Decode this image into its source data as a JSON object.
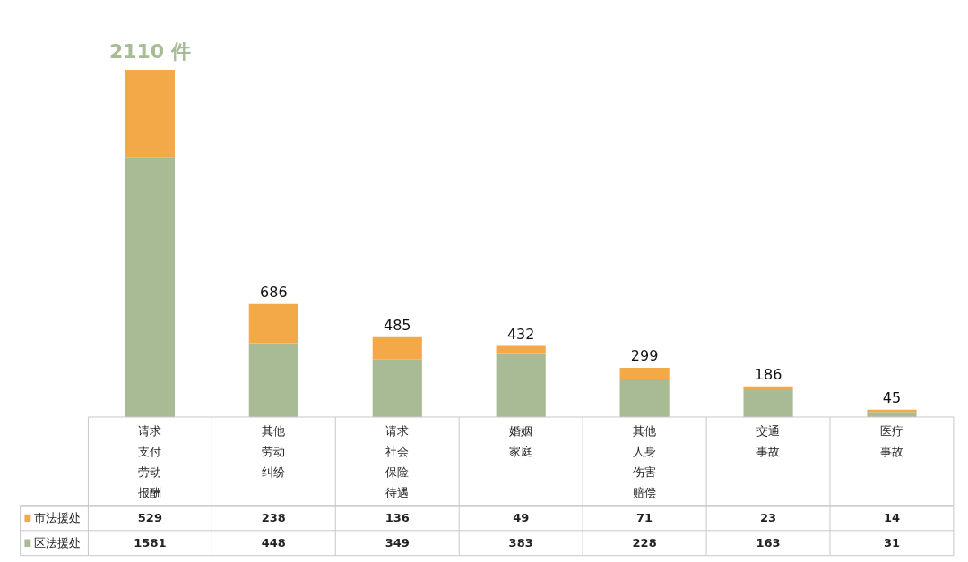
{
  "chart_data": {
    "type": "bar",
    "stacked": true,
    "data_labels": true,
    "legend": "bottom",
    "categories": [
      "请求支付劳动报酬",
      "其他劳动纠纷",
      "请求社会保险待遇",
      "婚姻家庭",
      "其他人身伤害赔偿",
      "交通事故",
      "医疗事故"
    ],
    "series": [
      {
        "name": "区法援处",
        "color": "#a9bb95",
        "values": [
          1581,
          448,
          349,
          383,
          228,
          163,
          31
        ]
      },
      {
        "name": "市法援处",
        "color": "#f4a949",
        "values": [
          529,
          238,
          136,
          49,
          71,
          23,
          14
        ]
      }
    ],
    "totals": [
      "2110 件",
      "686",
      "485",
      "432",
      "299",
      "186",
      "45"
    ]
  }
}
